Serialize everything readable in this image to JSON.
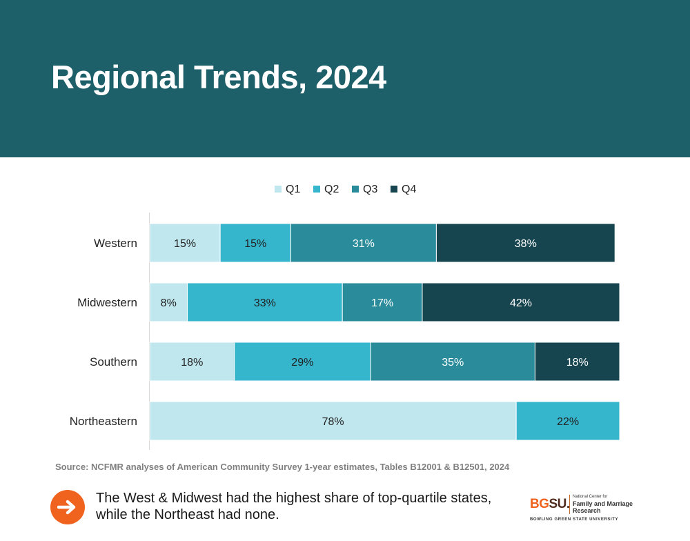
{
  "header": {
    "title": "Regional Trends, 2024"
  },
  "colors": {
    "header_bg": "#1e6069",
    "q1": "#c0e7ee",
    "q2": "#35b6cc",
    "q3": "#2a8b9b",
    "q4": "#16454f",
    "accent": "#f0631f",
    "bgsu_brown": "#4f2c1d"
  },
  "chart_data": {
    "type": "bar",
    "orientation": "horizontal",
    "stacked": true,
    "categories": [
      "Western",
      "Midwestern",
      "Southern",
      "Northeastern"
    ],
    "series": [
      {
        "name": "Q1",
        "values": [
          15,
          8,
          18,
          78
        ],
        "labels": [
          "15%",
          "8%",
          "18%",
          "78%"
        ]
      },
      {
        "name": "Q2",
        "values": [
          15,
          33,
          29,
          22
        ],
        "labels": [
          "15%",
          "33%",
          "29%",
          "22%"
        ]
      },
      {
        "name": "Q3",
        "values": [
          31,
          17,
          35,
          0
        ],
        "labels": [
          "31%",
          "17%",
          "35%",
          ""
        ]
      },
      {
        "name": "Q4",
        "values": [
          38,
          42,
          18,
          0
        ],
        "labels": [
          "38%",
          "42%",
          "18%",
          ""
        ]
      }
    ],
    "xlim": [
      0,
      100
    ],
    "title": "",
    "xlabel": "",
    "ylabel": "",
    "legend_position": "top-center",
    "grid": false
  },
  "source": {
    "text": "Source: NCFMR analyses of American Community Survey 1-year estimates, Tables B12001 & B12501, 2024"
  },
  "takeaway": {
    "icon": "arrow-right-icon",
    "text": "The West & Midwest had the highest share of top-quartile states, while the Northeast had none."
  },
  "logo": {
    "name": "BGSU",
    "bg": "BG",
    "su": "SU.",
    "center_small": "National Center for",
    "center_name": "Family and Marriage Research",
    "university": "BOWLING GREEN STATE UNIVERSITY"
  }
}
